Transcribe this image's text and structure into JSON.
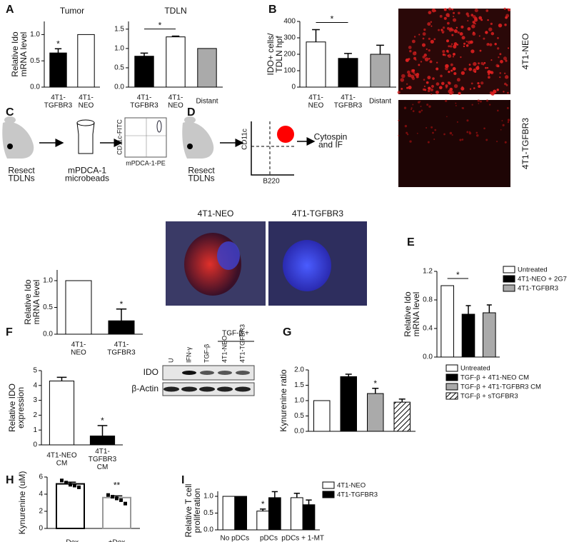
{
  "chart_data": [
    {
      "type": "bar",
      "title": "Tumor",
      "ylabel": [
        "Relative Ido",
        "mRNA level"
      ],
      "categories": [
        "4T1-\nTGFBR3",
        "4T1-\nNEO"
      ],
      "values": [
        0.65,
        1.0
      ],
      "errors": [
        0.08,
        0
      ],
      "colors": [
        "#000000",
        "#ffffff"
      ],
      "ylim": [
        0,
        1.25
      ],
      "yticks": [
        {
          "value": 0,
          "label": "0.0"
        },
        0.5,
        {
          "value": 1,
          "label": "1.0"
        }
      ],
      "annotations": [
        {
          "text": "*",
          "index": 0
        }
      ]
    },
    {
      "type": "bar",
      "title": "TDLN",
      "categories": [
        "4T1-\nTGFBR3",
        "4T1-\nNEO",
        "Distant"
      ],
      "values": [
        0.8,
        1.3,
        1.0
      ],
      "errors": [
        0.08,
        0.02,
        0
      ],
      "colors": [
        "#000000",
        "#ffffff",
        "#aaaaaa"
      ],
      "ylim": [
        0,
        1.7
      ],
      "yticks": [
        {
          "value": 0,
          "label": "0.0"
        },
        0.5,
        {
          "value": 1,
          "label": "1.0"
        },
        1.5
      ],
      "annotations": [
        {
          "text": "*",
          "from": 0,
          "to": 1
        }
      ]
    },
    {
      "type": "bar",
      "ylabel": [
        "IDO+ cells/",
        "TDLN hpf"
      ],
      "categories": [
        "4T1-\nNEO",
        "4T1-\nTGFBR3",
        "Distant"
      ],
      "values": [
        275,
        175,
        200
      ],
      "errors": [
        75,
        30,
        55
      ],
      "colors": [
        "#ffffff",
        "#000000",
        "#aaaaaa"
      ],
      "ylim": [
        0,
        400
      ],
      "yticks": [
        0,
        100,
        200,
        300,
        400
      ],
      "annotations": [
        {
          "text": "*",
          "from": 0,
          "to": 1
        }
      ]
    },
    {
      "type": "bar",
      "ylabel": [
        "Relative Ido",
        "mRNA level"
      ],
      "categories": [
        "4T1-\nNEO",
        "4T1-\nTGFBR3"
      ],
      "values": [
        1.0,
        0.25
      ],
      "errors": [
        0,
        0.22
      ],
      "colors": [
        "#ffffff",
        "#000000"
      ],
      "ylim": [
        0,
        1.2
      ],
      "yticks": [
        {
          "value": 0,
          "label": "0.0"
        },
        0.5,
        {
          "value": 1,
          "label": "1.0"
        }
      ],
      "annotations": [
        {
          "text": "*",
          "index": 1
        }
      ]
    },
    {
      "type": "bar",
      "ylabel": [
        "Relative Ido",
        "mRNA level"
      ],
      "categories": [
        "Untreated",
        "4T1-NEO + 2G7",
        "4T1-TGFBR3"
      ],
      "category_legend": true,
      "values": [
        1.0,
        0.6,
        0.62
      ],
      "errors": [
        0,
        0.12,
        0.11
      ],
      "colors": [
        "#ffffff",
        "#000000",
        "#aaaaaa"
      ],
      "ylim": [
        0,
        1.2
      ],
      "yticks": [
        {
          "value": 0,
          "label": "0.0"
        },
        0.4,
        0.8,
        1.2
      ],
      "annotations": [
        {
          "text": "*",
          "from": 0,
          "to": 1
        }
      ]
    },
    {
      "type": "bar",
      "ylabel": [
        "Relative IDO",
        "expression"
      ],
      "categories": [
        "4T1-NEO\nCM",
        "4T1-\nTGFBR3\nCM"
      ],
      "values": [
        4.3,
        0.6
      ],
      "errors": [
        0.25,
        0.7
      ],
      "colors": [
        "#ffffff",
        "#000000"
      ],
      "ylim": [
        0,
        5
      ],
      "yticks": [
        0,
        1,
        2,
        3,
        4,
        5
      ],
      "annotations": [
        {
          "text": "*",
          "index": 1
        }
      ]
    },
    {
      "type": "bar",
      "ylabel": [
        "Kynurenine ratio"
      ],
      "categories": [
        "Untreated",
        "TGF-β + 4T1-NEO CM",
        "TGF-β + 4T1-TGFBR3 CM",
        "TGF-β + sTGFBR3"
      ],
      "category_legend": true,
      "values": [
        1.0,
        1.78,
        1.23,
        0.95
      ],
      "errors": [
        0,
        0.08,
        0.17,
        0.1
      ],
      "colors": [
        "#ffffff",
        "#000000",
        "#aaaaaa",
        "hatch"
      ],
      "ylim": [
        0,
        2
      ],
      "yticks": [
        {
          "value": 0,
          "label": "0.0"
        },
        0.5,
        {
          "value": 1,
          "label": "1.0"
        },
        1.5,
        {
          "value": 2,
          "label": "2.0"
        }
      ],
      "annotations": [
        {
          "text": "*",
          "index": 2
        }
      ]
    },
    {
      "type": "bar",
      "ylabel": [
        "Kynurenine (uM)"
      ],
      "categories": [
        "–Dox",
        "+Dox"
      ],
      "values": [
        5.2,
        3.6
      ],
      "errors": [
        0.2,
        0.2
      ],
      "colors": [
        "#ffffff",
        "#ffffff"
      ],
      "outlines": [
        "#000000",
        "#999999"
      ],
      "points": [
        [
          5.6,
          5.35,
          5.1,
          5.0,
          4.8
        ],
        [
          3.9,
          3.7,
          3.5,
          3.3,
          2.9
        ]
      ],
      "ylim": [
        0,
        6
      ],
      "yticks": [
        0,
        2,
        4,
        6
      ],
      "annotations": [
        {
          "text": "**",
          "index": 1
        }
      ]
    },
    {
      "type": "grouped-bar",
      "ylabel": [
        "Relative T cell",
        "proliferation"
      ],
      "categories": [
        "No pDCs",
        "pDCs",
        "pDCs + 1-MT"
      ],
      "series": [
        {
          "name": "4T1-NEO",
          "color": "#ffffff",
          "values": [
            1.0,
            0.56,
            0.96
          ],
          "errors": [
            0,
            0.06,
            0.13
          ]
        },
        {
          "name": "4T1-TGFBR3",
          "color": "#000000",
          "values": [
            1.0,
            0.96,
            0.75
          ],
          "errors": [
            0,
            0.18,
            0.14
          ]
        }
      ],
      "ylim": [
        0,
        1.15
      ],
      "yticks": [
        {
          "value": 0,
          "label": "0.0"
        },
        0.5,
        {
          "value": 1,
          "label": "1.0"
        }
      ],
      "annotations": [
        {
          "text": "*",
          "series": 0,
          "index": 1
        }
      ]
    }
  ],
  "panel_letters": [
    "A",
    "B",
    "C",
    "D",
    "E",
    "F",
    "G",
    "H",
    "I"
  ],
  "micrographs_b": [
    "4T1-NEO",
    "4T1-TGFBR3"
  ],
  "schematic_c": {
    "step1": "Resect\nTDLNs",
    "step2": "mPDCA-1\nmicrobeads",
    "yaxis": "CD11c-FITC",
    "xaxis": "mPDCA-1-PE"
  },
  "schematic_d": {
    "step1": "Resect\nTDLNs",
    "yaxis": "CD11c",
    "xaxis": "B220",
    "step2": "Cytospin\nand IF",
    "images": [
      "4T1-NEO",
      "4T1-TGFBR3"
    ]
  },
  "blot_f": {
    "rows": [
      "IDO",
      "β-Actin"
    ],
    "lanes": [
      "U",
      "IFN-γ",
      "TGF-β",
      "4T1-NEO",
      "4T1-TGFBR3"
    ],
    "group": "TGF-β +"
  }
}
